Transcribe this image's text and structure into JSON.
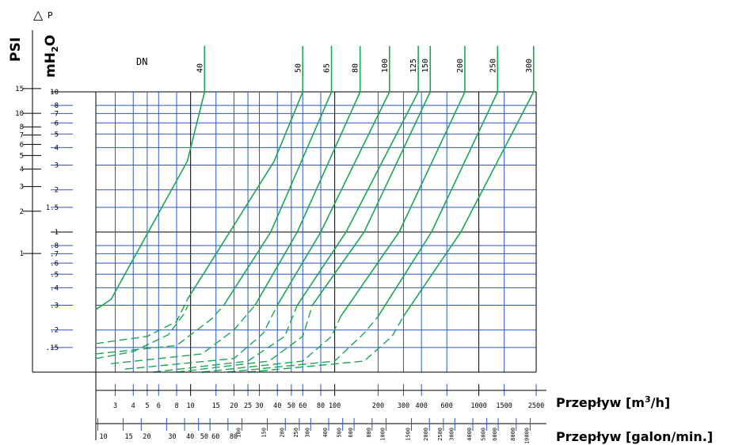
{
  "chart_data": {
    "type": "line",
    "delta_p_symbol": "△",
    "delta_p_letter": "P",
    "dn_label": "DN",
    "y_left_psi_title": "PSI",
    "y_left_mh2o_title_main": "mH",
    "y_left_mh2o_title_sub": "2",
    "y_left_mh2o_title_end": "O",
    "x_axis_m3h_title_main": "Przepływ  [m",
    "x_axis_m3h_title_sup": "3",
    "x_axis_m3h_title_end": "/h]",
    "x_axis_gpm_title": "Przepływ [galon/min.]",
    "y_scale": "log",
    "x_scale": "log",
    "mh2o_range": [
      0.1,
      10
    ],
    "m3h_range": [
      2.2,
      2500
    ],
    "mh2o_ticks": [
      {
        "value": 10,
        "label": "10"
      },
      {
        "value": 8,
        "label": "8"
      },
      {
        "value": 7,
        "label": "7"
      },
      {
        "value": 6,
        "label": "6"
      },
      {
        "value": 5,
        "label": "5"
      },
      {
        "value": 4,
        "label": "4"
      },
      {
        "value": 3,
        "label": "3"
      },
      {
        "value": 2,
        "label": "2"
      },
      {
        "value": 1.5,
        "label": "1.5"
      },
      {
        "value": 1,
        "label": "1"
      },
      {
        "value": 0.8,
        "label": ".8"
      },
      {
        "value": 0.7,
        "label": ".7"
      },
      {
        "value": 0.6,
        "label": ".6"
      },
      {
        "value": 0.5,
        "label": ".5"
      },
      {
        "value": 0.4,
        "label": ".4"
      },
      {
        "value": 0.3,
        "label": ".3"
      },
      {
        "value": 0.2,
        "label": ".2"
      },
      {
        "value": 0.15,
        "label": ".15"
      }
    ],
    "psi_ticks": [
      {
        "value": 15,
        "label": "15"
      },
      {
        "value": 10,
        "label": "10"
      },
      {
        "value": 8,
        "label": "8"
      },
      {
        "value": 7,
        "label": "7"
      },
      {
        "value": 6,
        "label": "6"
      },
      {
        "value": 5,
        "label": "5"
      },
      {
        "value": 4,
        "label": "4"
      },
      {
        "value": 3,
        "label": "3"
      },
      {
        "value": 2,
        "label": "2"
      },
      {
        "value": 1,
        "label": "1"
      }
    ],
    "m3h_ticks": [
      {
        "value": 3,
        "label": "3"
      },
      {
        "value": 4,
        "label": "4"
      },
      {
        "value": 5,
        "label": "5"
      },
      {
        "value": 6,
        "label": "6"
      },
      {
        "value": 8,
        "label": "8"
      },
      {
        "value": 10,
        "label": "10"
      },
      {
        "value": 15,
        "label": "15"
      },
      {
        "value": 20,
        "label": "20"
      },
      {
        "value": 25,
        "label": "25"
      },
      {
        "value": 30,
        "label": "30"
      },
      {
        "value": 40,
        "label": "40"
      },
      {
        "value": 50,
        "label": "50"
      },
      {
        "value": 60,
        "label": "60"
      },
      {
        "value": 80,
        "label": "80"
      },
      {
        "value": 100,
        "label": "100"
      },
      {
        "value": 200,
        "label": "200"
      },
      {
        "value": 300,
        "label": "300"
      },
      {
        "value": 400,
        "label": "400"
      },
      {
        "value": 600,
        "label": "600"
      },
      {
        "value": 1000,
        "label": "1000"
      },
      {
        "value": 1500,
        "label": "1500"
      },
      {
        "value": 2500,
        "label": "2500"
      }
    ],
    "gpm_ticks": [
      {
        "value": 10,
        "label": "10"
      },
      {
        "value": 15,
        "label": "15"
      },
      {
        "value": 20,
        "label": "20"
      },
      {
        "value": 30,
        "label": "30"
      },
      {
        "value": 40,
        "label": "40"
      },
      {
        "value": 50,
        "label": "50"
      },
      {
        "value": 60,
        "label": "60"
      },
      {
        "value": 80,
        "label": "80"
      },
      {
        "value": 100,
        "label": "100"
      },
      {
        "value": 150,
        "label": "150"
      },
      {
        "value": 200,
        "label": "200"
      },
      {
        "value": 250,
        "label": "250"
      },
      {
        "value": 300,
        "label": "300"
      },
      {
        "value": 400,
        "label": "400"
      },
      {
        "value": 500,
        "label": "500"
      },
      {
        "value": 600,
        "label": "600"
      },
      {
        "value": 800,
        "label": "800"
      },
      {
        "value": 1000,
        "label": "1000"
      },
      {
        "value": 1500,
        "label": "1500"
      },
      {
        "value": 2000,
        "label": "2000"
      },
      {
        "value": 2500,
        "label": "2500"
      },
      {
        "value": 3000,
        "label": "3000"
      },
      {
        "value": 4000,
        "label": "4000"
      },
      {
        "value": 5000,
        "label": "5000"
      },
      {
        "value": 6000,
        "label": "6000"
      },
      {
        "value": 8000,
        "label": "8000"
      },
      {
        "value": 10000,
        "label": "10000"
      }
    ],
    "series": [
      {
        "name": "40",
        "solid": [
          [
            2.2,
            0.28
          ],
          [
            2.8,
            0.33
          ],
          [
            9.5,
            3.2
          ],
          [
            12.5,
            10
          ]
        ],
        "dashed": [
          [
            2.2,
            0.125
          ],
          [
            4,
            0.14
          ],
          [
            7,
            0.185
          ],
          [
            9,
            0.26
          ],
          [
            9.6,
            0.3
          ]
        ]
      },
      {
        "name": "50",
        "solid": [
          [
            9.5,
            0.33
          ],
          [
            38,
            3.2
          ],
          [
            60,
            10
          ]
        ],
        "dashed": [
          [
            2.2,
            0.16
          ],
          [
            5,
            0.18
          ],
          [
            8,
            0.23
          ],
          [
            9.5,
            0.33
          ]
        ]
      },
      {
        "name": "65",
        "solid": [
          [
            17,
            0.3
          ],
          [
            36,
            1
          ],
          [
            95,
            10
          ]
        ],
        "dashed": [
          [
            2.2,
            0.135
          ],
          [
            8,
            0.155
          ],
          [
            14,
            0.24
          ],
          [
            17,
            0.3
          ]
        ]
      },
      {
        "name": "80",
        "solid": [
          [
            28,
            0.3
          ],
          [
            55,
            1
          ],
          [
            150,
            10
          ]
        ],
        "dashed": [
          [
            2.8,
            0.115
          ],
          [
            12,
            0.135
          ],
          [
            20,
            0.2
          ],
          [
            28,
            0.3
          ]
        ]
      },
      {
        "name": "100",
        "solid": [
          [
            40,
            0.3
          ],
          [
            80,
            1
          ],
          [
            240,
            10
          ]
        ],
        "dashed": [
          [
            3.5,
            0.105
          ],
          [
            20,
            0.125
          ],
          [
            32,
            0.19
          ],
          [
            40,
            0.3
          ]
        ]
      },
      {
        "name": "125",
        "solid": [
          [
            55,
            0.3
          ],
          [
            120,
            1
          ],
          [
            380,
            10
          ]
        ],
        "dashed": [
          [
            5.5,
            0.1
          ],
          [
            25,
            0.12
          ],
          [
            45,
            0.18
          ],
          [
            55,
            0.3
          ]
        ]
      },
      {
        "name": "150",
        "solid": [
          [
            70,
            0.3
          ],
          [
            160,
            1
          ],
          [
            460,
            10
          ]
        ],
        "dashed": [
          [
            8,
            0.1
          ],
          [
            35,
            0.12
          ],
          [
            60,
            0.18
          ],
          [
            70,
            0.3
          ]
        ]
      },
      {
        "name": "200",
        "solid": [
          [
            110,
            0.25
          ],
          [
            280,
            1
          ],
          [
            800,
            10
          ]
        ],
        "dashed": [
          [
            12,
            0.1
          ],
          [
            60,
            0.12
          ],
          [
            95,
            0.18
          ],
          [
            110,
            0.25
          ]
        ]
      },
      {
        "name": "250",
        "solid": [
          [
            200,
            0.25
          ],
          [
            470,
            1
          ],
          [
            1350,
            10
          ]
        ],
        "dashed": [
          [
            18,
            0.1
          ],
          [
            100,
            0.12
          ],
          [
            160,
            0.19
          ],
          [
            200,
            0.25
          ]
        ]
      },
      {
        "name": "300",
        "solid": [
          [
            300,
            0.25
          ],
          [
            750,
            1
          ],
          [
            2400,
            10
          ]
        ],
        "dashed": [
          [
            25,
            0.1
          ],
          [
            160,
            0.12
          ],
          [
            250,
            0.18
          ],
          [
            300,
            0.25
          ]
        ]
      }
    ],
    "colors": {
      "grid": "#2a56c6",
      "major_grid": "#000000",
      "curve": "#1aa653",
      "axis": "#000000"
    }
  }
}
